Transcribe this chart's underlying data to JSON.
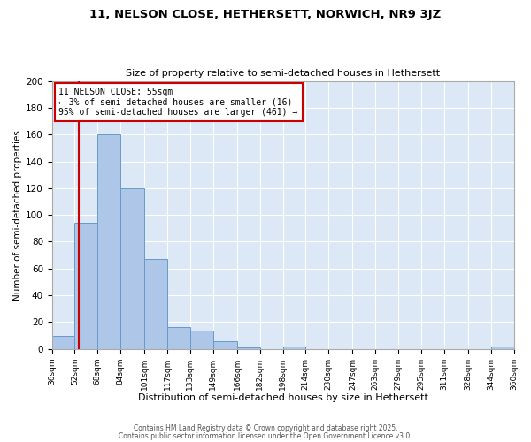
{
  "title": "11, NELSON CLOSE, HETHERSETT, NORWICH, NR9 3JZ",
  "subtitle": "Size of property relative to semi-detached houses in Hethersett",
  "xlabel": "Distribution of semi-detached houses by size in Hethersett",
  "ylabel": "Number of semi-detached properties",
  "bins": [
    36,
    52,
    68,
    84,
    101,
    117,
    133,
    149,
    166,
    182,
    198,
    214,
    230,
    247,
    263,
    279,
    295,
    311,
    328,
    344,
    360
  ],
  "counts": [
    10,
    94,
    160,
    120,
    67,
    16,
    14,
    6,
    1,
    0,
    2,
    0,
    0,
    0,
    0,
    0,
    0,
    0,
    0,
    2
  ],
  "bar_color": "#aec6e8",
  "bar_edge_color": "#6699cc",
  "property_line_x": 55,
  "property_line_color": "#cc0000",
  "annotation_title": "11 NELSON CLOSE: 55sqm",
  "annotation_line1": "← 3% of semi-detached houses are smaller (16)",
  "annotation_line2": "95% of semi-detached houses are larger (461) →",
  "annotation_box_color": "#ffffff",
  "annotation_box_edge": "#cc0000",
  "ylim": [
    0,
    200
  ],
  "yticks": [
    0,
    20,
    40,
    60,
    80,
    100,
    120,
    140,
    160,
    180,
    200
  ],
  "tick_labels": [
    "36sqm",
    "52sqm",
    "68sqm",
    "84sqm",
    "101sqm",
    "117sqm",
    "133sqm",
    "149sqm",
    "166sqm",
    "182sqm",
    "198sqm",
    "214sqm",
    "230sqm",
    "247sqm",
    "263sqm",
    "279sqm",
    "295sqm",
    "311sqm",
    "328sqm",
    "344sqm",
    "360sqm"
  ],
  "background_color": "#dce8f5",
  "footer_line1": "Contains HM Land Registry data © Crown copyright and database right 2025.",
  "footer_line2": "Contains public sector information licensed under the Open Government Licence v3.0."
}
